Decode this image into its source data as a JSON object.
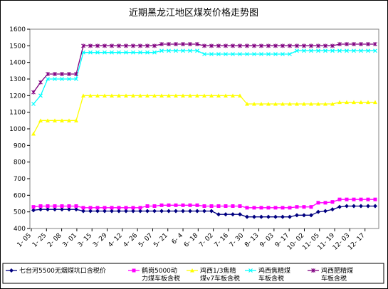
{
  "chart_data": {
    "type": "line",
    "title": "近期黑龙江地区煤炭价格走势图",
    "ylim": [
      400,
      1600
    ],
    "yticks": [
      400,
      500,
      600,
      700,
      800,
      900,
      1000,
      1100,
      1200,
      1300,
      1400,
      1500,
      1600
    ],
    "grid": false,
    "legend_position": "bottom",
    "x_tick_labels": [
      "1- 05",
      "1- 25",
      "2- 08",
      "3- 01",
      "3- 15",
      "3- 29",
      "4- 12",
      "4- 26",
      "5- 07",
      "5- 21",
      "6- 4",
      "6- 18",
      "7- 02",
      "7- 16",
      "7- 30",
      "8- 13",
      "9- 03",
      "9- 17",
      "10- 02",
      "11- 05",
      "11- 19",
      "12- 03",
      "12- 17"
    ],
    "x": [
      "1-05",
      "1-15",
      "1-25",
      "2-01",
      "2-08",
      "2-22",
      "3-01",
      "3-08",
      "3-15",
      "3-22",
      "3-29",
      "4-05",
      "4-12",
      "4-19",
      "4-26",
      "4-30",
      "5-07",
      "5-14",
      "5-21",
      "5-28",
      "6-04",
      "6-11",
      "6-18",
      "6-25",
      "7-02",
      "7-09",
      "7-16",
      "7-23",
      "7-30",
      "8-06",
      "8-13",
      "8-20",
      "8-27",
      "9-03",
      "9-10",
      "9-17",
      "9-24",
      "10-02",
      "10-15",
      "10-22",
      "11-05",
      "11-12",
      "11-19",
      "11-26",
      "12-03",
      "12-10",
      "12-17",
      "12-24",
      "12-31"
    ],
    "series": [
      {
        "name": "七台河5500无烟煤坑口含税价",
        "color": "#000080",
        "marker": "diamond",
        "values": [
          510,
          515,
          515,
          515,
          515,
          515,
          515,
          505,
          505,
          505,
          505,
          505,
          505,
          505,
          505,
          505,
          505,
          505,
          505,
          505,
          505,
          505,
          505,
          505,
          505,
          505,
          485,
          485,
          485,
          485,
          470,
          470,
          470,
          470,
          470,
          470,
          470,
          480,
          480,
          480,
          500,
          505,
          515,
          530,
          535,
          535,
          535,
          535,
          535
        ]
      },
      {
        "name": "鹤岗5000动力煤车板含税",
        "color": "#ff00ff",
        "marker": "square",
        "values": [
          530,
          535,
          535,
          535,
          535,
          535,
          535,
          525,
          525,
          525,
          525,
          525,
          525,
          525,
          525,
          525,
          535,
          535,
          540,
          540,
          540,
          540,
          540,
          540,
          535,
          535,
          535,
          535,
          535,
          535,
          525,
          525,
          525,
          525,
          525,
          525,
          525,
          530,
          530,
          530,
          555,
          555,
          560,
          575,
          575,
          575,
          575,
          575,
          575
        ]
      },
      {
        "name": "鸡西1/3焦精煤v7车板含税",
        "color": "#ffff00",
        "marker": "triangle",
        "values": [
          970,
          1050,
          1050,
          1050,
          1050,
          1050,
          1050,
          1200,
          1200,
          1200,
          1200,
          1200,
          1200,
          1200,
          1200,
          1200,
          1200,
          1200,
          1200,
          1200,
          1200,
          1200,
          1200,
          1200,
          1200,
          1200,
          1200,
          1200,
          1200,
          1200,
          1150,
          1150,
          1150,
          1150,
          1150,
          1150,
          1150,
          1150,
          1150,
          1150,
          1150,
          1150,
          1150,
          1160,
          1160,
          1160,
          1160,
          1160,
          1160
        ]
      },
      {
        "name": "鸡西焦精煤车板含税",
        "color": "#00ffff",
        "marker": "x",
        "values": [
          1150,
          1200,
          1300,
          1300,
          1300,
          1300,
          1300,
          1460,
          1460,
          1460,
          1460,
          1460,
          1460,
          1460,
          1460,
          1460,
          1460,
          1460,
          1470,
          1470,
          1470,
          1470,
          1470,
          1470,
          1450,
          1450,
          1450,
          1450,
          1450,
          1450,
          1450,
          1450,
          1450,
          1450,
          1450,
          1450,
          1450,
          1470,
          1470,
          1470,
          1470,
          1470,
          1470,
          1470,
          1470,
          1470,
          1470,
          1470,
          1470
        ]
      },
      {
        "name": "鸡西肥精煤车板含税",
        "color": "#800080",
        "marker": "star",
        "values": [
          1220,
          1280,
          1330,
          1330,
          1330,
          1330,
          1330,
          1500,
          1500,
          1500,
          1500,
          1500,
          1500,
          1500,
          1500,
          1500,
          1500,
          1500,
          1510,
          1510,
          1510,
          1510,
          1510,
          1510,
          1500,
          1500,
          1500,
          1500,
          1500,
          1500,
          1500,
          1500,
          1500,
          1500,
          1500,
          1500,
          1500,
          1500,
          1500,
          1500,
          1500,
          1500,
          1500,
          1510,
          1510,
          1510,
          1510,
          1510,
          1510
        ]
      }
    ]
  }
}
